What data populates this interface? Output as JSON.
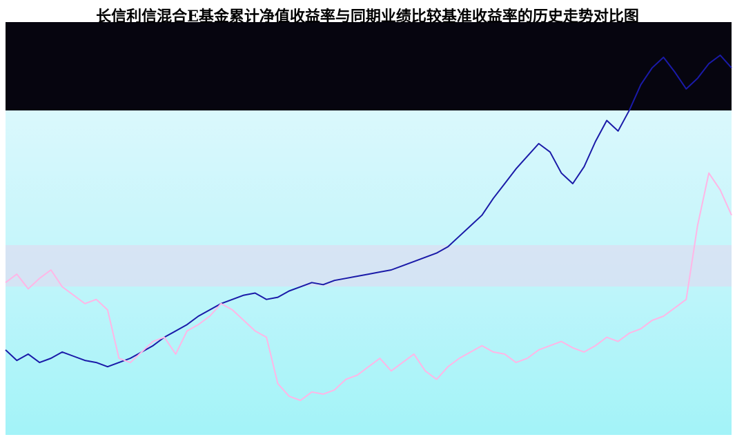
{
  "chart_data": {
    "type": "line",
    "title": "长信利信混合E基金累计净值收益率与同期业绩比较基准收益率的历史走势对比图",
    "xlabel": "",
    "ylabel": "",
    "series": [
      {
        "color": "#1a1aa8",
        "values": [
          0.46,
          0.41,
          0.44,
          0.4,
          0.42,
          0.45,
          0.43,
          0.41,
          0.4,
          0.38,
          0.4,
          0.42,
          0.45,
          0.48,
          0.52,
          0.55,
          0.58,
          0.62,
          0.65,
          0.68,
          0.7,
          0.72,
          0.73,
          0.7,
          0.71,
          0.74,
          0.76,
          0.78,
          0.77,
          0.79,
          0.8,
          0.81,
          0.82,
          0.83,
          0.84,
          0.86,
          0.88,
          0.9,
          0.92,
          0.95,
          1.0,
          1.05,
          1.1,
          1.18,
          1.25,
          1.32,
          1.38,
          1.44,
          1.4,
          1.3,
          1.25,
          1.33,
          1.45,
          1.55,
          1.5,
          1.6,
          1.72,
          1.8,
          1.85,
          1.78,
          1.7,
          1.75,
          1.82,
          1.86,
          1.8
        ]
      },
      {
        "color": "#ffb6e6",
        "values": [
          0.78,
          0.82,
          0.75,
          0.8,
          0.84,
          0.76,
          0.72,
          0.68,
          0.7,
          0.65,
          0.42,
          0.4,
          0.45,
          0.5,
          0.52,
          0.44,
          0.55,
          0.58,
          0.62,
          0.68,
          0.65,
          0.6,
          0.55,
          0.52,
          0.3,
          0.24,
          0.22,
          0.26,
          0.25,
          0.27,
          0.32,
          0.34,
          0.38,
          0.42,
          0.36,
          0.4,
          0.44,
          0.36,
          0.32,
          0.38,
          0.42,
          0.45,
          0.48,
          0.45,
          0.44,
          0.4,
          0.42,
          0.46,
          0.48,
          0.5,
          0.47,
          0.45,
          0.48,
          0.52,
          0.5,
          0.54,
          0.56,
          0.6,
          0.62,
          0.66,
          0.7,
          1.05,
          1.3,
          1.22,
          1.1
        ]
      }
    ]
  }
}
